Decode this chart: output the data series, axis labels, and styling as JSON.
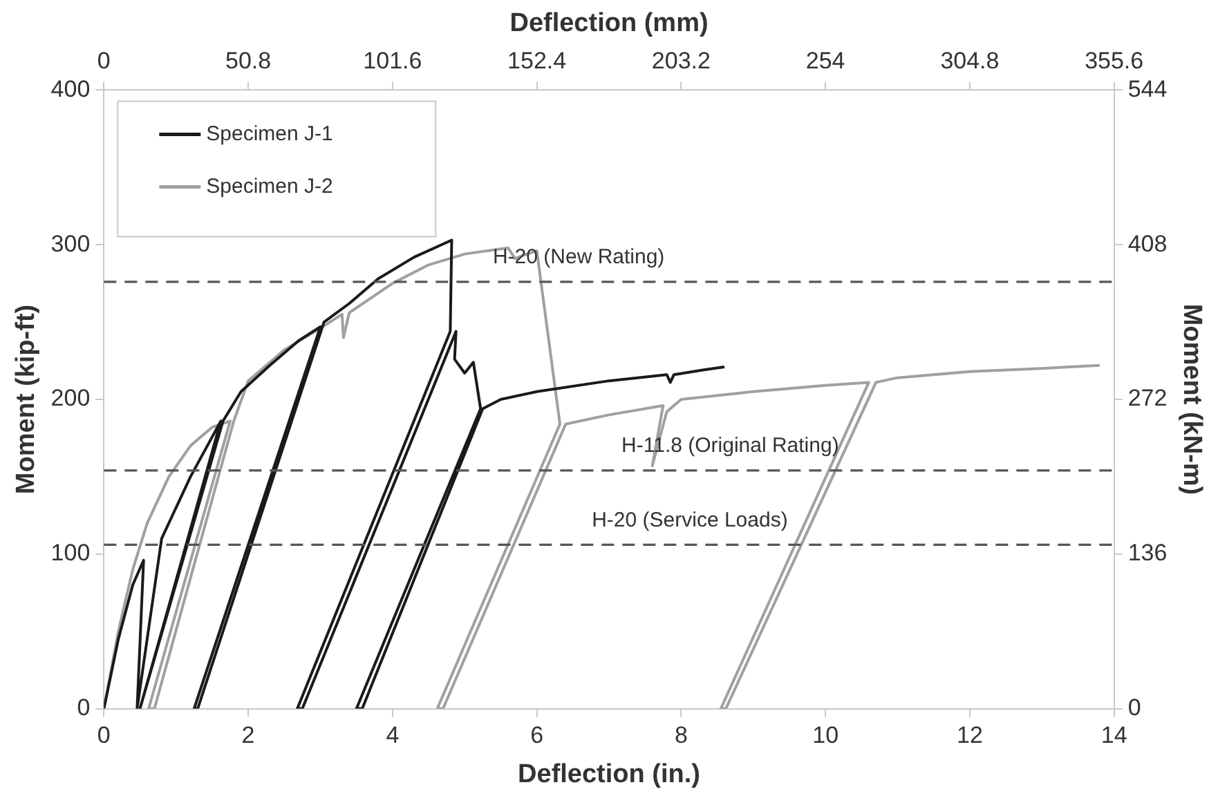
{
  "chart_data": {
    "type": "line",
    "xlabel": "Deflection (in.)",
    "ylabel": "Moment (kip-ft)",
    "x2label": "Deflection (mm)",
    "y2label": "Moment (kN-m)",
    "xlim": [
      0,
      14
    ],
    "xticks": [
      0,
      2,
      4,
      6,
      8,
      10,
      12,
      14
    ],
    "ylim": [
      0,
      400
    ],
    "yticks": [
      0,
      100,
      200,
      300,
      400
    ],
    "x2lim": [
      0,
      355.6
    ],
    "x2ticks": [
      0,
      50.8,
      101.6,
      152.4,
      203.2,
      254,
      304.8,
      355.6
    ],
    "y2lim": [
      0,
      544
    ],
    "y2ticks": [
      0,
      136,
      272,
      408,
      544
    ],
    "grid": false,
    "legend": "top left",
    "marker": "none",
    "line_style": "solid",
    "series": [
      {
        "name": "Specimen J-1",
        "color": "#1a1a1a",
        "x": [
          0,
          0.2,
          0.4,
          0.55,
          0.46,
          0.8,
          1.2,
          1.62,
          0.5,
          1.65,
          1.9,
          2.3,
          2.7,
          3.0,
          1.25,
          1.3,
          3.05,
          3.4,
          3.8,
          4.3,
          4.82,
          4.8,
          2.68,
          2.75,
          4.88,
          4.86,
          5.0,
          5.12,
          5.22,
          3.5,
          3.58,
          5.25,
          5.5,
          6,
          7,
          7.8,
          7.85,
          7.9,
          8.3,
          8.6
        ],
        "values": [
          0,
          45,
          80,
          96,
          0,
          110,
          150,
          186,
          0,
          186,
          205,
          222,
          238,
          247,
          0,
          0,
          250,
          262,
          278,
          292,
          303,
          244,
          0,
          0,
          244,
          226,
          217,
          224,
          194,
          0,
          0,
          194,
          200,
          205,
          212,
          216,
          211,
          216,
          219,
          221
        ]
      },
      {
        "name": "Specimen J-2",
        "color": "#a0a0a0",
        "x": [
          0,
          0.2,
          0.4,
          0.6,
          0.9,
          1.2,
          1.5,
          1.75,
          0.62,
          0.7,
          1.8,
          2.0,
          2.5,
          3.0,
          3.3,
          3.32,
          3.4,
          4.0,
          4.5,
          5.0,
          5.6,
          5.7,
          5.8,
          6.0,
          6.32,
          4.62,
          4.7,
          6.4,
          7,
          7.75,
          7.6,
          7.8,
          8.0,
          9,
          10,
          10.6,
          8.55,
          8.62,
          10.7,
          11,
          12,
          13,
          13.8
        ],
        "values": [
          0,
          50,
          90,
          120,
          150,
          170,
          182,
          186,
          0,
          0,
          186,
          212,
          232,
          246,
          255,
          240,
          256,
          275,
          287,
          294,
          298,
          291,
          293,
          296,
          184,
          0,
          0,
          184,
          190,
          196,
          157,
          192,
          200,
          205,
          209,
          211,
          0,
          0,
          211,
          214,
          218,
          220,
          222
        ]
      }
    ],
    "ref_lines": [
      {
        "axis": "y",
        "value": 276,
        "label": "H-20 (New Rating)",
        "color": "#555555",
        "line_style": "dashed"
      },
      {
        "axis": "y",
        "value": 154,
        "label": "H-11.8 (Original Rating)",
        "color": "#555555",
        "line_style": "dashed"
      },
      {
        "axis": "y",
        "value": 106,
        "label": "H-20 (Service Loads)",
        "color": "#555555",
        "line_style": "dashed"
      }
    ]
  }
}
